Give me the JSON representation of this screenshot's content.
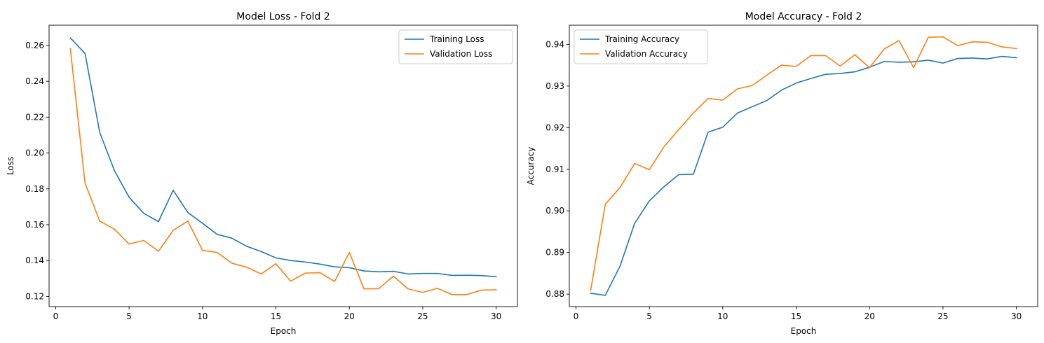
{
  "chart_data": [
    {
      "type": "line",
      "title": "Model Loss - Fold 2",
      "xlabel": "Epoch",
      "ylabel": "Loss",
      "xlim": [
        -0.45,
        31.45
      ],
      "ylim": [
        0.1143,
        0.2713
      ],
      "xticks": [
        0,
        5,
        10,
        15,
        20,
        25,
        30
      ],
      "yticks": [
        0.12,
        0.14,
        0.16,
        0.18,
        0.2,
        0.22,
        0.24,
        0.26
      ],
      "ytick_decimals": 2,
      "legend_position": "top-right",
      "grid": false,
      "x": [
        1,
        2,
        3,
        4,
        5,
        6,
        7,
        8,
        9,
        10,
        11,
        12,
        13,
        14,
        15,
        16,
        17,
        18,
        19,
        20,
        21,
        22,
        23,
        24,
        25,
        26,
        27,
        28,
        29,
        30
      ],
      "series": [
        {
          "name": "Training Loss",
          "color": "#1f77b4",
          "values": [
            0.2642,
            0.2555,
            0.2115,
            0.1902,
            0.1753,
            0.1663,
            0.1617,
            0.1792,
            0.1668,
            0.1608,
            0.1546,
            0.1525,
            0.148,
            0.145,
            0.1415,
            0.14,
            0.1392,
            0.138,
            0.1365,
            0.136,
            0.1342,
            0.1337,
            0.134,
            0.1325,
            0.1328,
            0.1328,
            0.1317,
            0.1318,
            0.1316,
            0.131
          ]
        },
        {
          "name": "Validation Loss",
          "color": "#ff7f0e",
          "values": [
            0.2582,
            0.1832,
            0.162,
            0.1575,
            0.1492,
            0.1512,
            0.1452,
            0.1568,
            0.162,
            0.1457,
            0.1445,
            0.1385,
            0.1363,
            0.1325,
            0.1382,
            0.1285,
            0.133,
            0.1332,
            0.1283,
            0.1445,
            0.1242,
            0.1243,
            0.1313,
            0.1242,
            0.1222,
            0.1245,
            0.121,
            0.121,
            0.1235,
            0.1237
          ]
        }
      ]
    },
    {
      "type": "line",
      "title": "Model Accuracy - Fold 2",
      "xlabel": "Epoch",
      "ylabel": "Accuracy",
      "xlim": [
        -0.45,
        31.45
      ],
      "ylim": [
        0.877,
        0.9446
      ],
      "xticks": [
        0,
        5,
        10,
        15,
        20,
        25,
        30
      ],
      "yticks": [
        0.88,
        0.89,
        0.9,
        0.91,
        0.92,
        0.93,
        0.94
      ],
      "ytick_decimals": 2,
      "legend_position": "top-left",
      "grid": false,
      "x": [
        1,
        2,
        3,
        4,
        5,
        6,
        7,
        8,
        9,
        10,
        11,
        12,
        13,
        14,
        15,
        16,
        17,
        18,
        19,
        20,
        21,
        22,
        23,
        24,
        25,
        26,
        27,
        28,
        29,
        30
      ],
      "series": [
        {
          "name": "Training Accuracy",
          "color": "#1f77b4",
          "values": [
            0.8802,
            0.8797,
            0.8867,
            0.897,
            0.9024,
            0.9058,
            0.9087,
            0.9088,
            0.9189,
            0.9201,
            0.9235,
            0.925,
            0.9265,
            0.929,
            0.9307,
            0.9318,
            0.9328,
            0.933,
            0.9334,
            0.9345,
            0.9359,
            0.9357,
            0.9358,
            0.9362,
            0.9355,
            0.9366,
            0.9367,
            0.9365,
            0.9371,
            0.9368
          ]
        },
        {
          "name": "Validation Accuracy",
          "color": "#ff7f0e",
          "values": [
            0.8808,
            0.9016,
            0.9056,
            0.9114,
            0.9099,
            0.9154,
            0.9195,
            0.9235,
            0.927,
            0.9266,
            0.9293,
            0.9301,
            0.9326,
            0.935,
            0.9347,
            0.9373,
            0.9373,
            0.9348,
            0.9375,
            0.9344,
            0.9389,
            0.9409,
            0.9344,
            0.9417,
            0.9418,
            0.9397,
            0.9406,
            0.9405,
            0.9394,
            0.939
          ]
        }
      ]
    }
  ]
}
